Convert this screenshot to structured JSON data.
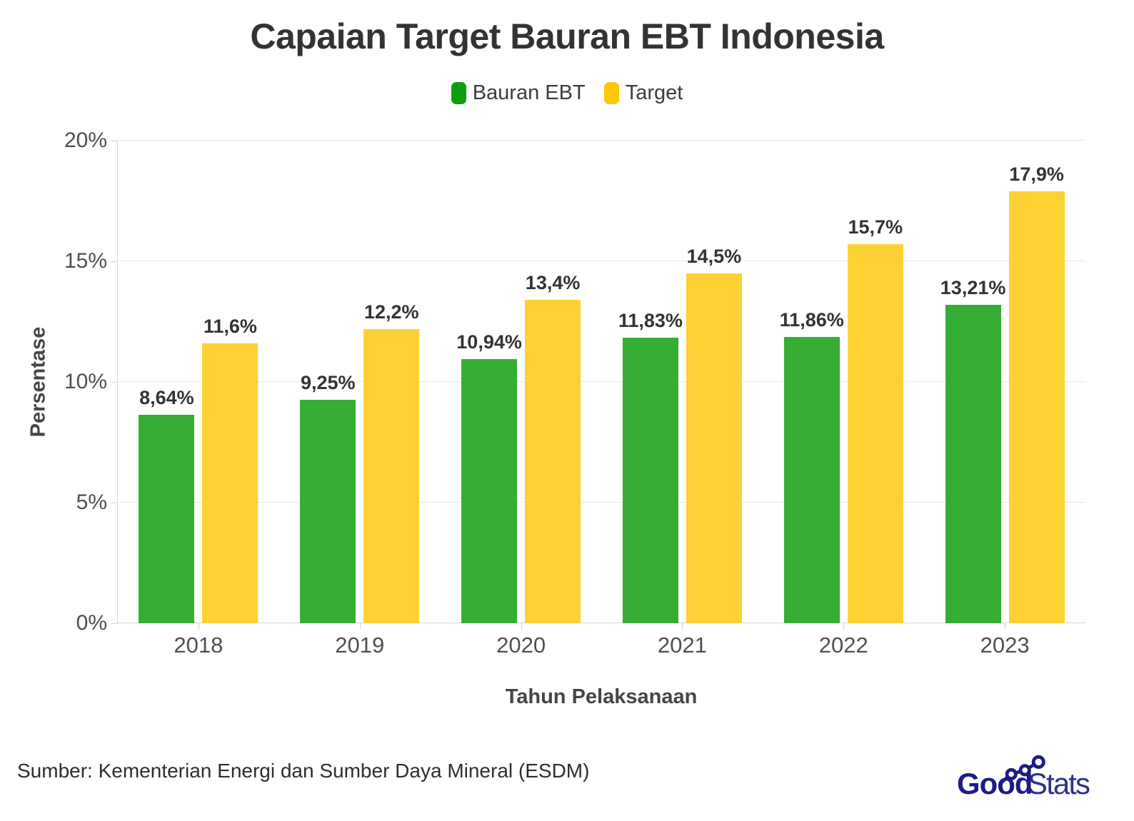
{
  "title": "Capaian Target Bauran EBT Indonesia",
  "legend": [
    {
      "label": "Bauran EBT",
      "color": "#0f9e0f"
    },
    {
      "label": "Target",
      "color": "#fdc607"
    }
  ],
  "chart_data": {
    "type": "bar",
    "categories": [
      "2018",
      "2019",
      "2020",
      "2021",
      "2022",
      "2023"
    ],
    "series": [
      {
        "name": "Bauran EBT",
        "color": "#36ae33",
        "values": [
          8.64,
          9.25,
          10.94,
          11.83,
          11.86,
          13.21
        ],
        "labels": [
          "8,64%",
          "9,25%",
          "10,94%",
          "11,83%",
          "11,86%",
          "13,21%"
        ]
      },
      {
        "name": "Target",
        "color": "#fdd033",
        "values": [
          11.6,
          12.2,
          13.4,
          14.5,
          15.7,
          17.9
        ],
        "labels": [
          "11,6%",
          "12,2%",
          "13,4%",
          "14,5%",
          "15,7%",
          "17,9%"
        ]
      }
    ],
    "xlabel": "Tahun Pelaksanaan",
    "ylabel": "Persentase",
    "ylim": [
      0,
      20
    ],
    "yticks": [
      "0%",
      "5%",
      "10%",
      "15%",
      "20%"
    ],
    "grid": true,
    "legend_position": "top"
  },
  "footer": {
    "source": "Sumber: Kementerian Energi dan Sumber Daya Mineral (ESDM)",
    "logo": {
      "bold": "Good",
      "light": "Stats",
      "color": "#1c1c85"
    }
  }
}
